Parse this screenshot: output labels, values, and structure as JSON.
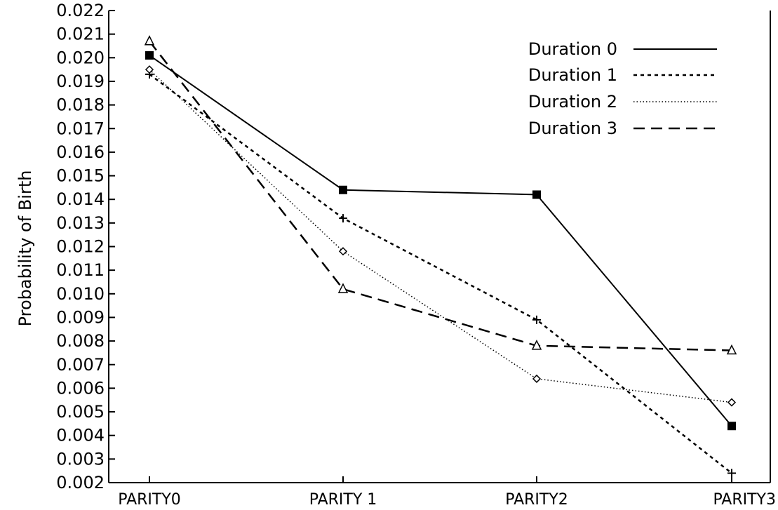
{
  "chart_data": {
    "type": "line",
    "title": "",
    "xlabel": "",
    "ylabel": "Probability of Birth",
    "categories": [
      "PARITY0",
      "PARITY 1",
      "PARITY2",
      "PARITY3"
    ],
    "ylim": [
      0.002,
      0.022
    ],
    "yticks": [
      "0.002",
      "0.003",
      "0.004",
      "0.005",
      "0.006",
      "0.007",
      "0.008",
      "0.009",
      "0.010",
      "0.011",
      "0.012",
      "0.013",
      "0.014",
      "0.015",
      "0.016",
      "0.017",
      "0.018",
      "0.019",
      "0.020",
      "0.021",
      "0.022"
    ],
    "grid": false,
    "legend_position": "top-right",
    "series": [
      {
        "name": "Duration 0",
        "values": [
          0.0201,
          0.0144,
          0.0142,
          0.0044
        ],
        "line_style": "solid",
        "marker": "filled-square"
      },
      {
        "name": "Duration 1",
        "values": [
          0.0193,
          0.0132,
          0.0089,
          0.0024
        ],
        "line_style": "dashed-short",
        "marker": "plus"
      },
      {
        "name": "Duration 2",
        "values": [
          0.0195,
          0.0118,
          0.0064,
          0.0054
        ],
        "line_style": "dotted",
        "marker": "open-diamond"
      },
      {
        "name": "Duration 3",
        "values": [
          0.0207,
          0.0102,
          0.0078,
          0.0076
        ],
        "line_style": "dashed-long",
        "marker": "open-triangle"
      }
    ]
  }
}
